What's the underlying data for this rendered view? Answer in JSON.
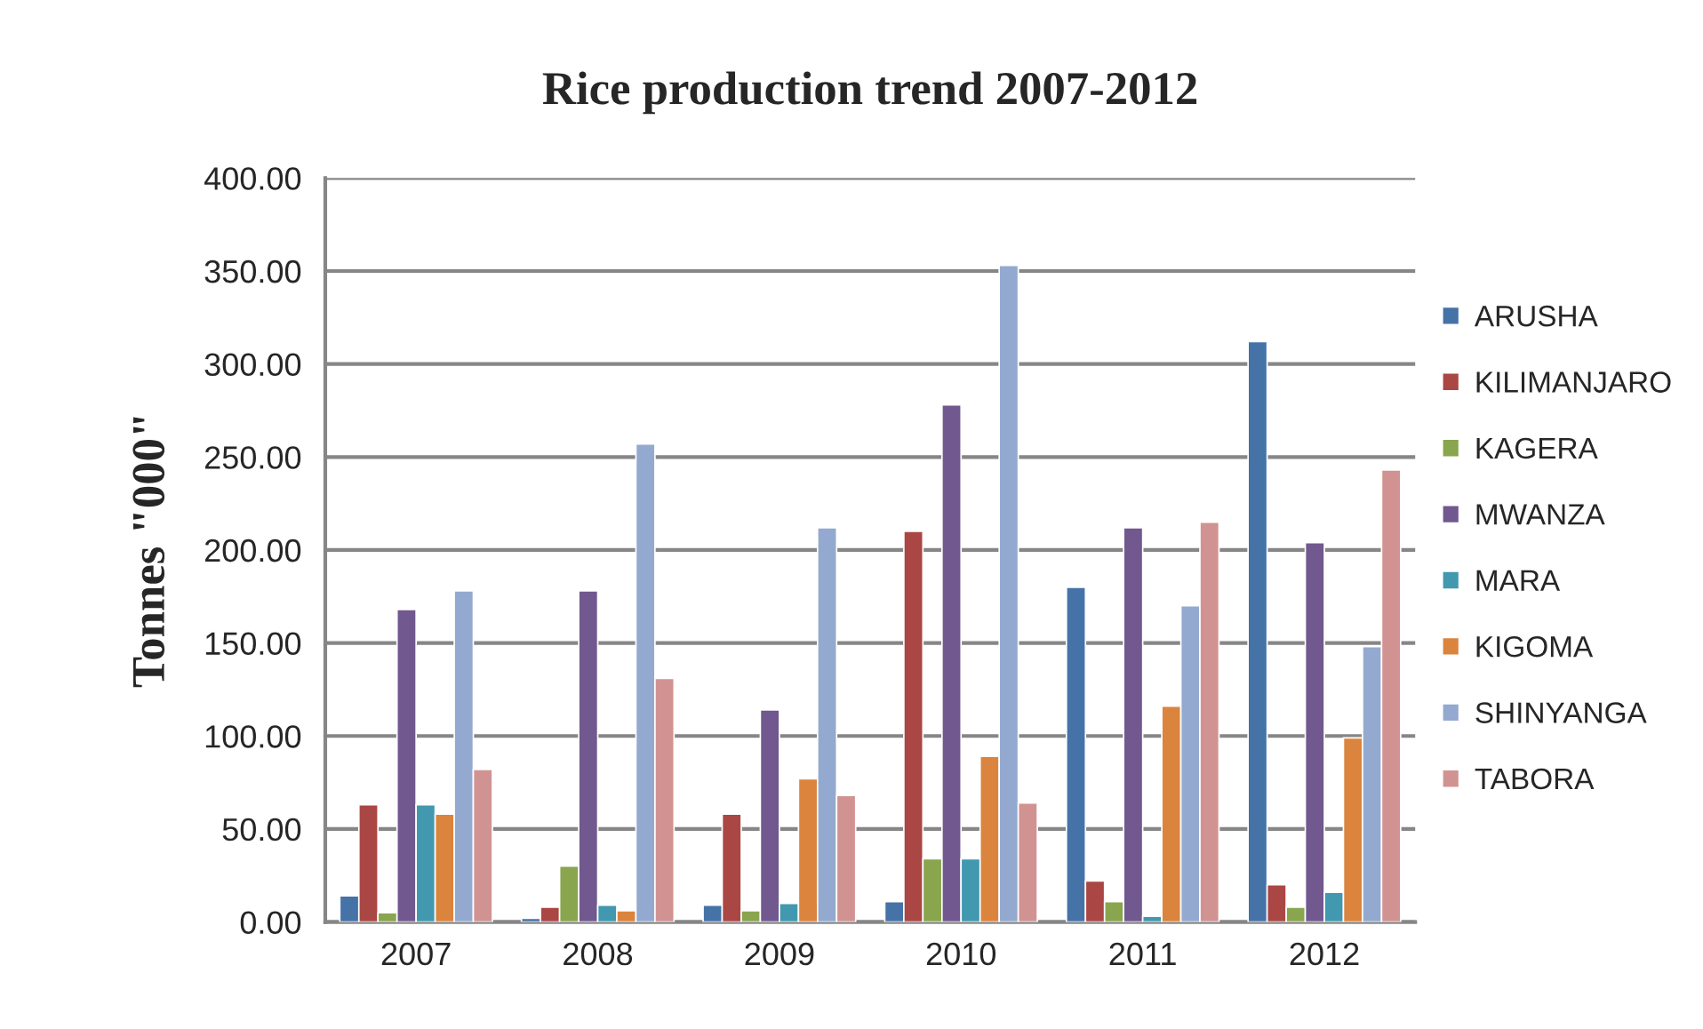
{
  "chart_data": {
    "type": "bar",
    "title": "Rice production trend 2007-2012",
    "ylabel": "Tonnes \"000\"",
    "categories": [
      "2007",
      "2008",
      "2009",
      "2010",
      "2011",
      "2012"
    ],
    "series": [
      {
        "name": "ARUSHA",
        "color": "#4572a7",
        "values": [
          14,
          2,
          9,
          11,
          180,
          312
        ]
      },
      {
        "name": "KILIMANJARO",
        "color": "#aa4643",
        "values": [
          63,
          8,
          58,
          210,
          22,
          20
        ]
      },
      {
        "name": "KAGERA",
        "color": "#89a54e",
        "values": [
          5,
          30,
          6,
          34,
          11,
          8
        ]
      },
      {
        "name": "MWANZA",
        "color": "#71588f",
        "values": [
          168,
          178,
          114,
          278,
          212,
          204
        ]
      },
      {
        "name": "MARA",
        "color": "#4198af",
        "values": [
          63,
          9,
          10,
          34,
          3,
          16
        ]
      },
      {
        "name": "KIGOMA",
        "color": "#db843d",
        "values": [
          58,
          6,
          77,
          89,
          116,
          99
        ]
      },
      {
        "name": "SHINYANGA",
        "color": "#93a9cf",
        "values": [
          178,
          257,
          212,
          353,
          170,
          148
        ]
      },
      {
        "name": "TABORA",
        "color": "#d19392",
        "values": [
          82,
          131,
          68,
          64,
          215,
          243
        ]
      }
    ],
    "ylim": [
      0,
      400
    ],
    "yticks": [
      {
        "value": 0,
        "label": "0.00"
      },
      {
        "value": 50,
        "label": "50.00"
      },
      {
        "value": 100,
        "label": "100.00"
      },
      {
        "value": 150,
        "label": "150.00"
      },
      {
        "value": 200,
        "label": "200.00"
      },
      {
        "value": 250,
        "label": "250.00"
      },
      {
        "value": 300,
        "label": "300.00"
      },
      {
        "value": 350,
        "label": "350.00"
      },
      {
        "value": 400,
        "label": "400.00"
      }
    ],
    "grid": "y",
    "legend": "right"
  }
}
